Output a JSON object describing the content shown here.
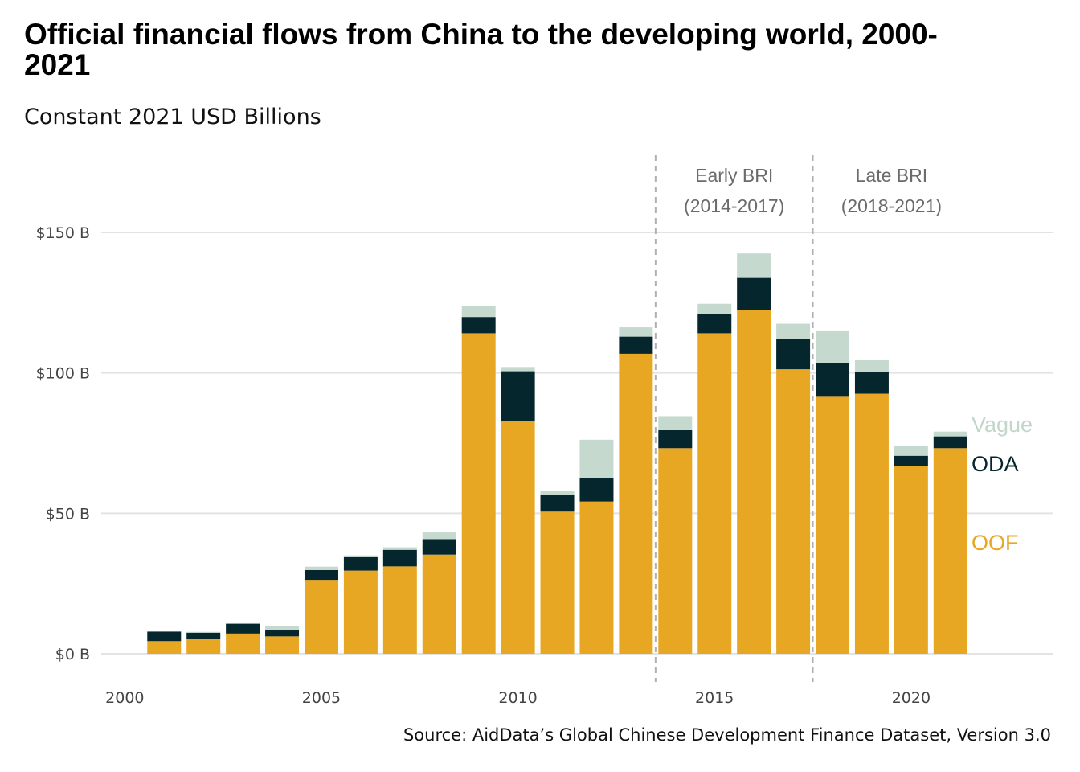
{
  "chart_data": {
    "type": "bar",
    "stacked": true,
    "title": "Official financial flows from China to the developing world, 2000-2021",
    "subtitle": "Constant 2021 USD Billions",
    "source": "Source: AidData’s Global Chinese Development Finance Dataset, Version 3.0",
    "x": [
      2001,
      2002,
      2003,
      2004,
      2005,
      2006,
      2007,
      2008,
      2009,
      2010,
      2011,
      2012,
      2013,
      2014,
      2015,
      2016,
      2017,
      2018,
      2019,
      2020,
      2021
    ],
    "x_ticks": [
      2000,
      2005,
      2010,
      2015,
      2020
    ],
    "x_tick_labels": [
      "2000",
      "2005",
      "2010",
      "2015",
      "2020"
    ],
    "xlim": [
      1999.4,
      2023.6
    ],
    "ylim": [
      -7,
      150
    ],
    "y_ticks": [
      0,
      50,
      100,
      150
    ],
    "y_tick_labels": [
      "$0 B",
      "$50 B",
      "$100 B",
      "$150 B"
    ],
    "grid": true,
    "legend_placement": "right, beside last bar",
    "series": [
      {
        "name": "OOF",
        "color": "#E8A723",
        "values": [
          4.5,
          5.2,
          7.2,
          6.2,
          26.3,
          29.6,
          31.1,
          35.3,
          114.1,
          82.8,
          50.6,
          54.2,
          106.8,
          73.2,
          114.1,
          122.5,
          101.3,
          91.5,
          92.6,
          66.9,
          73.2
        ]
      },
      {
        "name": "ODA",
        "color": "#06262D",
        "values": [
          3.4,
          2.3,
          3.5,
          2.1,
          3.5,
          4.8,
          5.9,
          5.5,
          5.8,
          17.8,
          6.0,
          8.4,
          6.1,
          6.4,
          6.9,
          11.3,
          10.7,
          11.9,
          7.6,
          3.6,
          4.2
        ]
      },
      {
        "name": "Vague",
        "color": "#C6D9CE",
        "values": [
          0.0,
          0.3,
          0.2,
          1.5,
          1.2,
          0.6,
          0.9,
          2.4,
          4.0,
          1.5,
          1.5,
          13.6,
          3.3,
          5.0,
          3.6,
          8.7,
          5.5,
          11.7,
          4.3,
          3.4,
          1.7
        ]
      }
    ],
    "annotations": [
      {
        "line1": "Early BRI",
        "line2": "(2014-2017)",
        "span": [
          2014,
          2017
        ]
      },
      {
        "line1": "Late BRI",
        "line2": "(2018-2021)",
        "span": [
          2018,
          2021
        ]
      }
    ],
    "dividers_at": [
      2013.5,
      2017.5
    ]
  }
}
